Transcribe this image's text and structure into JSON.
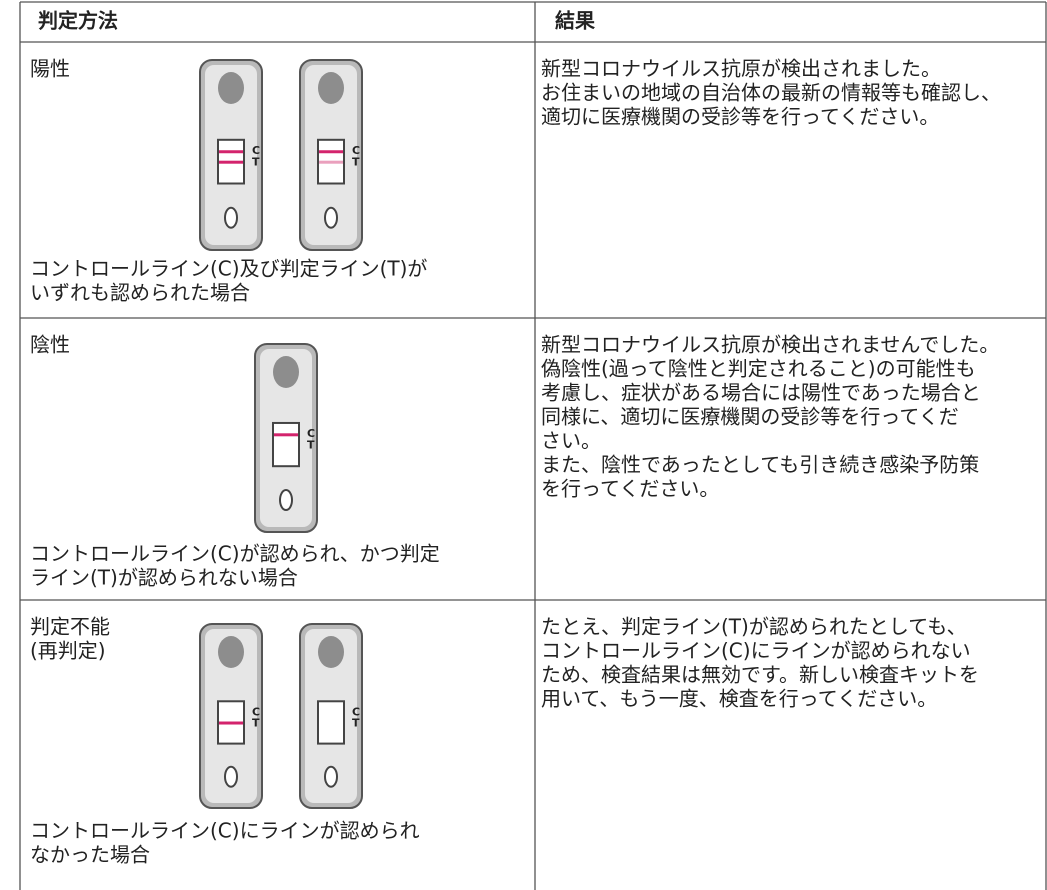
{
  "header": [
    "判定方法",
    "結果"
  ],
  "cassette_labels": {
    "c": "C",
    "t": "T"
  },
  "rows": [
    {
      "label": [
        "陽性"
      ],
      "condition": [
        "コントロールライン(C)及び判定ライン(T)が",
        "いずれも認められた場合"
      ],
      "result": [
        "新型コロナウイルス抗原が検出されました。",
        "お住まいの地域の自治体の最新の情報等も確認し、",
        "適切に医療機関の受診等を行ってください。"
      ]
    },
    {
      "label": [
        "陰性"
      ],
      "condition": [
        "コントロールライン(C)が認められ、かつ判定",
        "ライン(T)が認められない場合"
      ],
      "result": [
        "新型コロナウイルス抗原が検出されませんでした。",
        "偽陰性(過って陰性と判定されること)の可能性も",
        "考慮し、症状がある場合には陽性であった場合と",
        "同様に、適切に医療機関の受診等を行ってくだ",
        "さい。",
        "また、陰性であったとしても引き続き感染予防策",
        "を行ってください。"
      ]
    },
    {
      "label": [
        "判定不能",
        "(再判定)"
      ],
      "condition": [
        "コントロールライン(C)にラインが認められ",
        "なかった場合"
      ],
      "result": [
        "たとえ、判定ライン(T)が認められたとしても、",
        "コントロールライン(C)にラインが認められない",
        "ため、検査結果は無効です。新しい検査キットを",
        "用いて、もう一度、検査を行ってください。"
      ]
    }
  ]
}
